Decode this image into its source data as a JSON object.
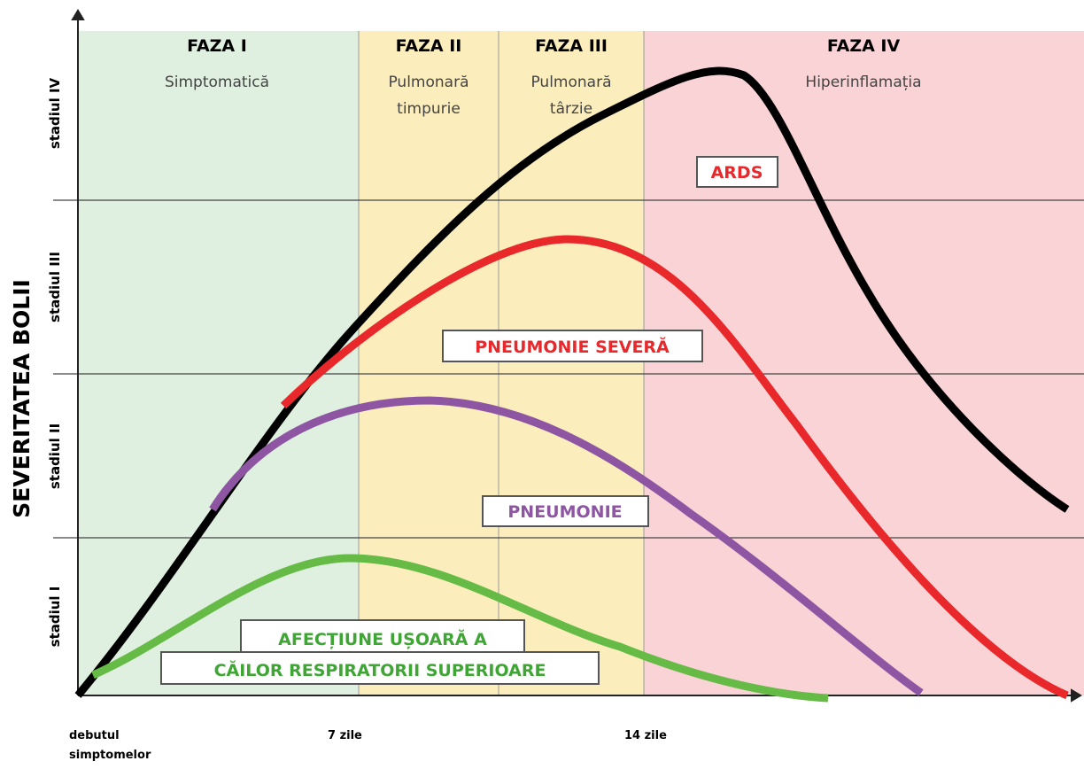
{
  "y_axis_title": "SEVERITATEA BOLII",
  "stages": [
    "stadiul I",
    "stadiul II",
    "stadiul III",
    "stadiul IV"
  ],
  "phases": [
    {
      "title": "FAZA I",
      "subtitle": [
        "Simptomatică"
      ]
    },
    {
      "title": "FAZA II",
      "subtitle": [
        "Pulmonară",
        "timpurie"
      ]
    },
    {
      "title": "FAZA III",
      "subtitle": [
        "Pulmonară",
        "târzie"
      ]
    },
    {
      "title": "FAZA IV",
      "subtitle": [
        "Hiperinflamația"
      ]
    }
  ],
  "curves": [
    {
      "label": [
        "ARDS"
      ]
    },
    {
      "label": [
        "PNEUMONIE SEVERĂ"
      ]
    },
    {
      "label": [
        "PNEUMONIE"
      ]
    },
    {
      "label": [
        "AFECȚIUNE UȘOARĂ A",
        "CĂILOR RESPIRATORII SUPERIOARE"
      ]
    }
  ],
  "x_labels": [
    [
      "debutul",
      "simptomelor"
    ],
    [
      "7 zile"
    ],
    [
      "14 zile"
    ]
  ]
}
